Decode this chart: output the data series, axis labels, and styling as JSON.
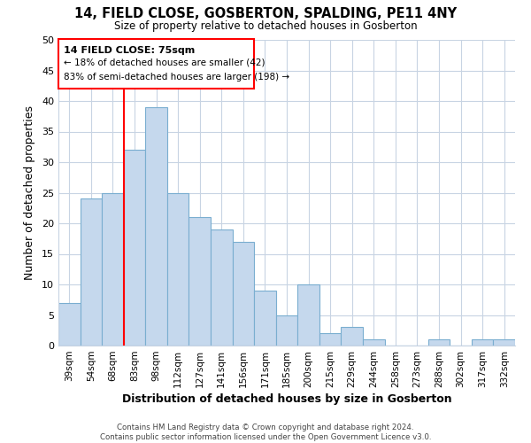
{
  "title": "14, FIELD CLOSE, GOSBERTON, SPALDING, PE11 4NY",
  "subtitle": "Size of property relative to detached houses in Gosberton",
  "xlabel": "Distribution of detached houses by size in Gosberton",
  "ylabel": "Number of detached properties",
  "categories": [
    "39sqm",
    "54sqm",
    "68sqm",
    "83sqm",
    "98sqm",
    "112sqm",
    "127sqm",
    "141sqm",
    "156sqm",
    "171sqm",
    "185sqm",
    "200sqm",
    "215sqm",
    "229sqm",
    "244sqm",
    "258sqm",
    "273sqm",
    "288sqm",
    "302sqm",
    "317sqm",
    "332sqm"
  ],
  "values": [
    7,
    24,
    25,
    32,
    39,
    25,
    21,
    19,
    17,
    9,
    5,
    10,
    2,
    3,
    1,
    0,
    0,
    1,
    0,
    1,
    1
  ],
  "bar_color": "#c5d8ed",
  "bar_edge_color": "#7aaed0",
  "vline_color": "red",
  "vline_index": 3,
  "ylim": [
    0,
    50
  ],
  "yticks": [
    0,
    5,
    10,
    15,
    20,
    25,
    30,
    35,
    40,
    45,
    50
  ],
  "annotation_title": "14 FIELD CLOSE: 75sqm",
  "annotation_line1": "← 18% of detached houses are smaller (42)",
  "annotation_line2": "83% of semi-detached houses are larger (198) →",
  "footer1": "Contains HM Land Registry data © Crown copyright and database right 2024.",
  "footer2": "Contains public sector information licensed under the Open Government Licence v3.0.",
  "background_color": "#ffffff",
  "grid_color": "#c8d4e3"
}
